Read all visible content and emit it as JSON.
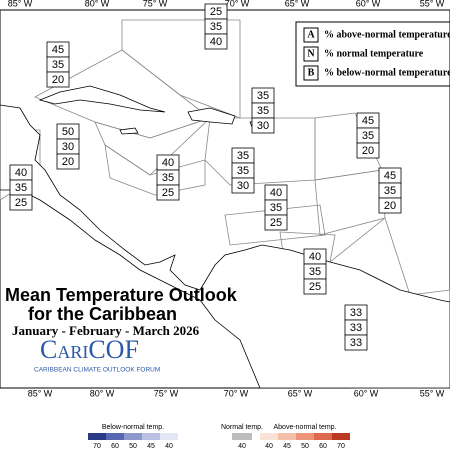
{
  "title": "Mean Temperature Outlook",
  "subtitle": "for the Caribbean",
  "period": "January - February - March 2026",
  "logo": {
    "name": "CariCOF",
    "tagline": "CARIBBEAN CLIMATE OUTLOOK FORUM"
  },
  "longitudes_top": [
    "85° W",
    "80° W",
    "75° W",
    "70° W",
    "65° W",
    "60° W",
    "55° W"
  ],
  "longitudes_bottom": [
    "85° W",
    "80° W",
    "75° W",
    "70° W",
    "65° W",
    "60° W",
    "55° W"
  ],
  "key": [
    {
      "letter": "A",
      "text": "% above-normal temperature"
    },
    {
      "letter": "N",
      "text": "% normal temperature"
    },
    {
      "letter": "B",
      "text": "% below-normal temperature"
    }
  ],
  "regions": [
    {
      "values": [
        25,
        35,
        40
      ]
    },
    {
      "values": [
        45,
        35,
        20
      ]
    },
    {
      "values": [
        50,
        30,
        20
      ]
    },
    {
      "values": [
        35,
        35,
        30
      ]
    },
    {
      "values": [
        45,
        35,
        20
      ]
    },
    {
      "values": [
        40,
        35,
        25
      ]
    },
    {
      "values": [
        35,
        35,
        30
      ]
    },
    {
      "values": [
        40,
        35,
        25
      ]
    },
    {
      "values": [
        45,
        35,
        20
      ]
    },
    {
      "values": [
        40,
        35,
        25
      ]
    },
    {
      "values": [
        40,
        35,
        25
      ]
    },
    {
      "values": [
        33,
        33,
        33
      ]
    }
  ],
  "colorbar": [
    {
      "label": "Below-normal temp.",
      "ticks": [
        70,
        60,
        50,
        45,
        40
      ]
    },
    {
      "label": "Normal temp.",
      "ticks": [
        40
      ]
    },
    {
      "label": "Above-normal temp.",
      "ticks": [
        40,
        45,
        50,
        60,
        70
      ]
    }
  ]
}
